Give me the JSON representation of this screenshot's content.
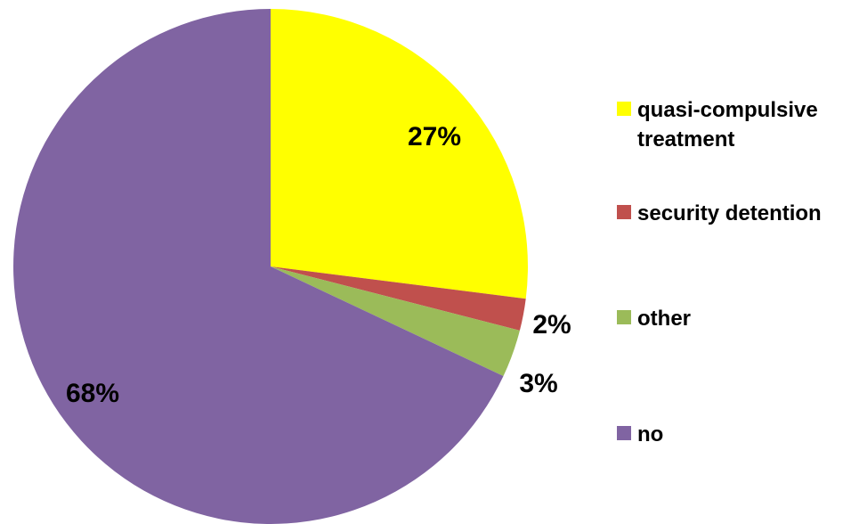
{
  "chart_data": {
    "type": "pie",
    "title": "",
    "start_angle_deg": 0,
    "direction": "clockwise",
    "legend_position": "right",
    "slices": [
      {
        "label": "quasi-compulsive treatment",
        "legend_lines": [
          "quasi-compulsive",
          "treatment"
        ],
        "value": 27,
        "display": "27%",
        "color": "#FFFF00"
      },
      {
        "label": "security detention",
        "legend_lines": [
          "security detention"
        ],
        "value": 2,
        "display": "2%",
        "color": "#C0504D"
      },
      {
        "label": "other",
        "legend_lines": [
          "other"
        ],
        "value": 3,
        "display": "3%",
        "color": "#9BBB59"
      },
      {
        "label": "no",
        "legend_lines": [
          "no"
        ],
        "value": 68,
        "display": "68%",
        "color": "#8064A2"
      }
    ]
  }
}
